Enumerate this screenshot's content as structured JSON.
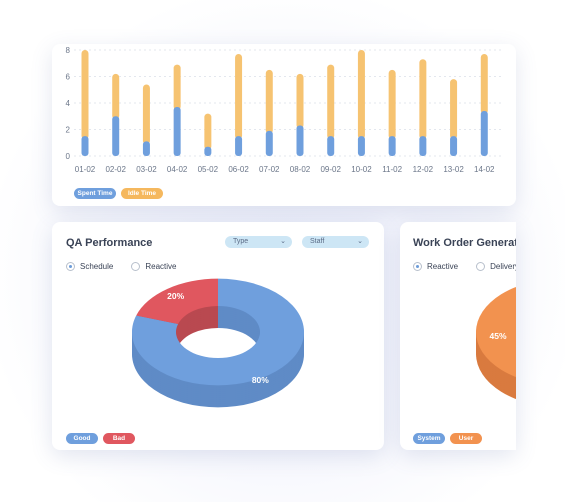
{
  "bar_chart": {
    "legend": {
      "spent_label": "Spent Time",
      "idle_label": "Idle Time"
    },
    "colors": {
      "spent": "#6f9fdd",
      "idle": "#f6c371",
      "spent_pill": "#6f9fdd",
      "idle_pill": "#f5b85e"
    }
  },
  "qa": {
    "title": "QA Performance",
    "select_type": "Type",
    "select_staff": "Staff",
    "radio_schedule": "Schedule",
    "radio_reactive": "Reactive",
    "legend_good": "Good",
    "legend_bad": "Bad",
    "colors": {
      "good": "#6f9fdd",
      "bad": "#e0575f"
    }
  },
  "work_order": {
    "title": "Work Order Generation",
    "radio_reactive": "Reactive",
    "radio_delivery": "Delivery",
    "legend_system": "System",
    "legend_user": "User",
    "colors": {
      "system": "#6f9fdd",
      "user": "#f2924f"
    }
  },
  "chart_data": [
    {
      "type": "bar",
      "stacked": true,
      "categories": [
        "01-02",
        "02-02",
        "03-02",
        "04-02",
        "05-02",
        "06-02",
        "07-02",
        "08-02",
        "09-02",
        "10-02",
        "11-02",
        "12-02",
        "13-02",
        "14-02"
      ],
      "series": [
        {
          "name": "Spent Time",
          "values": [
            1.5,
            3,
            1.1,
            3.7,
            0.7,
            1.5,
            1.9,
            2.3,
            1.5,
            1.5,
            1.5,
            1.5,
            1.5,
            3.4
          ]
        },
        {
          "name": "Idle Time",
          "values": [
            6.5,
            3.2,
            4.3,
            3.2,
            2.5,
            6.2,
            4.6,
            3.9,
            5.4,
            6.5,
            5.0,
            5.8,
            4.3,
            4.3
          ]
        }
      ],
      "ylim": [
        0,
        8
      ],
      "yticks": [
        "0",
        "2",
        "4",
        "6",
        "8"
      ],
      "grid": true,
      "legend_position": "bottom-left"
    },
    {
      "type": "pie",
      "variant": "3d-donut",
      "labels": [
        "Good",
        "Bad"
      ],
      "values": [
        80,
        20
      ],
      "data_labels": [
        "80%",
        "20%"
      ]
    },
    {
      "type": "pie",
      "variant": "3d-donut",
      "labels": [
        "System",
        "User"
      ],
      "visible_data_labels": [
        "45%"
      ]
    }
  ]
}
